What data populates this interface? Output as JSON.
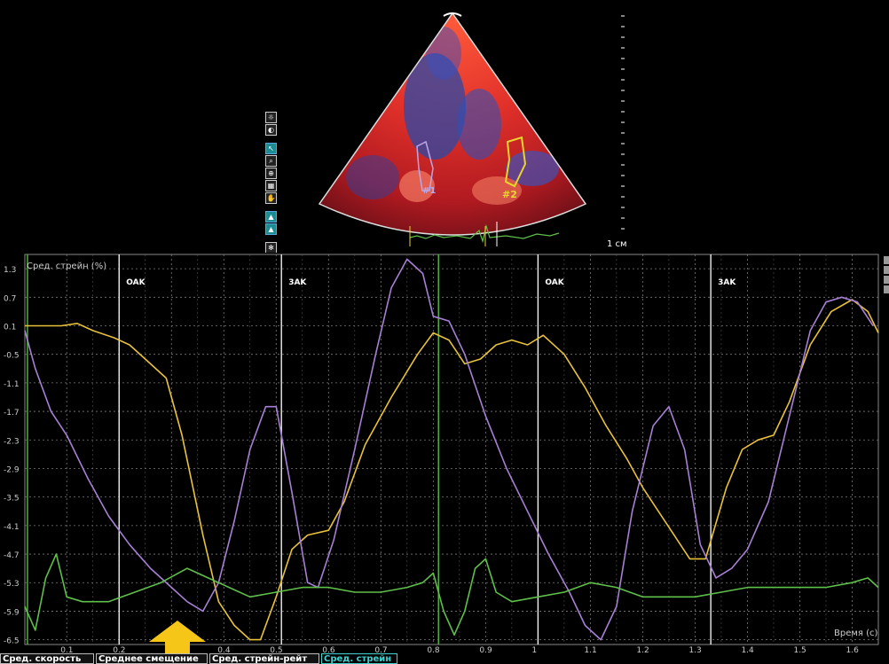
{
  "ultrasound": {
    "scale_label": "1 см",
    "roi_labels": [
      "#1",
      "#2"
    ],
    "colors": {
      "roi1": "#b9a7e6",
      "roi2": "#e8d62c",
      "ecg": "#5fbf4a"
    }
  },
  "toolbar": {
    "icons": [
      "brightness-icon",
      "contrast-icon",
      "cursor-icon",
      "zoom-icon",
      "zoom-region-icon",
      "grid-icon",
      "hand-icon",
      "trace-icon",
      "trace-alt-icon",
      "settings-icon"
    ]
  },
  "tabs": [
    {
      "label": "Сред. скорость",
      "active": false
    },
    {
      "label": "Среднее смещение",
      "active": false
    },
    {
      "label": "Сред. стрейн-рейт",
      "active": false
    },
    {
      "label": "Сред. стрейн",
      "active": true
    }
  ],
  "chart_data": {
    "type": "line",
    "title": "Сред. стрейн (%)",
    "xlabel": "Время (с)",
    "ylabel": "",
    "x_ticks": [
      0.1,
      0.2,
      0.3,
      0.4,
      0.5,
      0.6,
      0.7,
      0.8,
      0.9,
      1.0,
      1.1,
      1.2,
      1.3,
      1.4,
      1.5,
      1.6
    ],
    "x_tick_labels": [
      "0.1",
      "0.2",
      "0.3",
      "0.4",
      "0.5",
      "0.6",
      "0.7",
      "0.8",
      "0.9",
      "1",
      "1.1",
      "1.2",
      "1.3",
      "1.4",
      "1.5",
      "1.6"
    ],
    "y_ticks": [
      1.3,
      0.7,
      0.1,
      -0.5,
      -1.1,
      -1.7,
      -2.3,
      -2.9,
      -3.5,
      -4.1,
      -4.7,
      -5.3,
      -5.9,
      -6.5
    ],
    "y_tick_labels": [
      "1.3",
      "0.7",
      "0.1",
      "-0.5",
      "-1.1",
      "-1.7",
      "-2.3",
      "-2.9",
      "-3.5",
      "-4.1",
      "-4.7",
      "-5.3",
      "-5.9",
      "-6.5"
    ],
    "xlim": [
      0.02,
      1.65
    ],
    "ylim": [
      -6.6,
      1.6
    ],
    "grid": true,
    "markers": [
      {
        "label": "OAK",
        "x": 0.2,
        "color": "#ffffff"
      },
      {
        "label": "3AK",
        "x": 0.51,
        "color": "#ffffff"
      },
      {
        "label": "OAK",
        "x": 1.0,
        "color": "#ffffff"
      },
      {
        "label": "3AK",
        "x": 1.33,
        "color": "#ffffff"
      }
    ],
    "green_vlines": [
      0.025,
      0.81
    ],
    "series": [
      {
        "color": "#e8c23a",
        "points": [
          [
            0.02,
            0.1
          ],
          [
            0.06,
            0.1
          ],
          [
            0.09,
            0.1
          ],
          [
            0.12,
            0.15
          ],
          [
            0.15,
            0.0
          ],
          [
            0.19,
            -0.15
          ],
          [
            0.22,
            -0.3
          ],
          [
            0.25,
            -0.6
          ],
          [
            0.29,
            -1.0
          ],
          [
            0.32,
            -2.2
          ],
          [
            0.36,
            -4.3
          ],
          [
            0.39,
            -5.7
          ],
          [
            0.42,
            -6.2
          ],
          [
            0.45,
            -6.5
          ],
          [
            0.47,
            -6.5
          ],
          [
            0.5,
            -5.6
          ],
          [
            0.53,
            -4.6
          ],
          [
            0.56,
            -4.3
          ],
          [
            0.6,
            -4.2
          ],
          [
            0.63,
            -3.6
          ],
          [
            0.67,
            -2.4
          ],
          [
            0.72,
            -1.4
          ],
          [
            0.77,
            -0.5
          ],
          [
            0.8,
            -0.05
          ],
          [
            0.83,
            -0.2
          ],
          [
            0.86,
            -0.7
          ],
          [
            0.89,
            -0.6
          ],
          [
            0.92,
            -0.3
          ],
          [
            0.95,
            -0.2
          ],
          [
            0.98,
            -0.3
          ],
          [
            1.01,
            -0.1
          ],
          [
            1.05,
            -0.5
          ],
          [
            1.09,
            -1.2
          ],
          [
            1.13,
            -2.0
          ],
          [
            1.17,
            -2.7
          ],
          [
            1.2,
            -3.3
          ],
          [
            1.23,
            -3.8
          ],
          [
            1.26,
            -4.3
          ],
          [
            1.29,
            -4.8
          ],
          [
            1.32,
            -4.8
          ],
          [
            1.36,
            -3.3
          ],
          [
            1.39,
            -2.5
          ],
          [
            1.42,
            -2.3
          ],
          [
            1.45,
            -2.2
          ],
          [
            1.48,
            -1.5
          ],
          [
            1.52,
            -0.3
          ],
          [
            1.56,
            0.4
          ],
          [
            1.6,
            0.65
          ],
          [
            1.63,
            0.4
          ],
          [
            1.65,
            -0.05
          ]
        ]
      },
      {
        "color": "#a77fd4",
        "points": [
          [
            0.02,
            0.0
          ],
          [
            0.04,
            -0.8
          ],
          [
            0.07,
            -1.7
          ],
          [
            0.1,
            -2.2
          ],
          [
            0.14,
            -3.1
          ],
          [
            0.18,
            -3.9
          ],
          [
            0.22,
            -4.5
          ],
          [
            0.26,
            -5.0
          ],
          [
            0.3,
            -5.4
          ],
          [
            0.33,
            -5.7
          ],
          [
            0.36,
            -5.9
          ],
          [
            0.39,
            -5.3
          ],
          [
            0.42,
            -4.0
          ],
          [
            0.45,
            -2.5
          ],
          [
            0.48,
            -1.6
          ],
          [
            0.5,
            -1.6
          ],
          [
            0.53,
            -3.4
          ],
          [
            0.56,
            -5.3
          ],
          [
            0.58,
            -5.4
          ],
          [
            0.61,
            -4.4
          ],
          [
            0.65,
            -2.5
          ],
          [
            0.69,
            -0.5
          ],
          [
            0.72,
            0.9
          ],
          [
            0.75,
            1.5
          ],
          [
            0.78,
            1.2
          ],
          [
            0.8,
            0.3
          ],
          [
            0.83,
            0.2
          ],
          [
            0.86,
            -0.5
          ],
          [
            0.9,
            -1.8
          ],
          [
            0.94,
            -2.9
          ],
          [
            0.98,
            -3.8
          ],
          [
            1.02,
            -4.7
          ],
          [
            1.06,
            -5.5
          ],
          [
            1.09,
            -6.2
          ],
          [
            1.12,
            -6.5
          ],
          [
            1.15,
            -5.8
          ],
          [
            1.18,
            -3.8
          ],
          [
            1.22,
            -2.0
          ],
          [
            1.25,
            -1.6
          ],
          [
            1.28,
            -2.5
          ],
          [
            1.31,
            -4.5
          ],
          [
            1.34,
            -5.2
          ],
          [
            1.37,
            -5.0
          ],
          [
            1.4,
            -4.6
          ],
          [
            1.44,
            -3.6
          ],
          [
            1.48,
            -1.8
          ],
          [
            1.52,
            0.0
          ],
          [
            1.55,
            0.6
          ],
          [
            1.58,
            0.7
          ],
          [
            1.61,
            0.6
          ],
          [
            1.64,
            0.1
          ]
        ]
      },
      {
        "color": "#5fbf4a",
        "points": [
          [
            0.02,
            -5.8
          ],
          [
            0.04,
            -6.3
          ],
          [
            0.06,
            -5.2
          ],
          [
            0.08,
            -4.7
          ],
          [
            0.1,
            -5.6
          ],
          [
            0.13,
            -5.7
          ],
          [
            0.18,
            -5.7
          ],
          [
            0.23,
            -5.5
          ],
          [
            0.28,
            -5.3
          ],
          [
            0.33,
            -5.0
          ],
          [
            0.37,
            -5.2
          ],
          [
            0.41,
            -5.4
          ],
          [
            0.45,
            -5.6
          ],
          [
            0.5,
            -5.5
          ],
          [
            0.55,
            -5.4
          ],
          [
            0.6,
            -5.4
          ],
          [
            0.65,
            -5.5
          ],
          [
            0.7,
            -5.5
          ],
          [
            0.75,
            -5.4
          ],
          [
            0.78,
            -5.3
          ],
          [
            0.8,
            -5.1
          ],
          [
            0.82,
            -5.9
          ],
          [
            0.84,
            -6.4
          ],
          [
            0.86,
            -5.9
          ],
          [
            0.88,
            -5.0
          ],
          [
            0.9,
            -4.8
          ],
          [
            0.92,
            -5.5
          ],
          [
            0.95,
            -5.7
          ],
          [
            1.0,
            -5.6
          ],
          [
            1.05,
            -5.5
          ],
          [
            1.1,
            -5.3
          ],
          [
            1.15,
            -5.4
          ],
          [
            1.2,
            -5.6
          ],
          [
            1.25,
            -5.6
          ],
          [
            1.3,
            -5.6
          ],
          [
            1.35,
            -5.5
          ],
          [
            1.4,
            -5.4
          ],
          [
            1.45,
            -5.4
          ],
          [
            1.5,
            -5.4
          ],
          [
            1.55,
            -5.4
          ],
          [
            1.6,
            -5.3
          ],
          [
            1.63,
            -5.2
          ],
          [
            1.65,
            -5.4
          ]
        ]
      }
    ]
  }
}
